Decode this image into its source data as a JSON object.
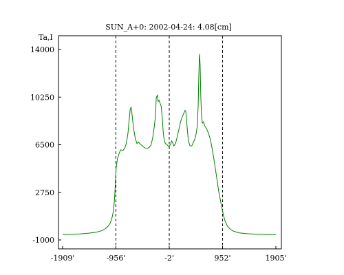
{
  "chart_data": {
    "type": "line",
    "title": "SUN_A+0: 2002-04-24: 4.08[cm]",
    "ylabel": "Ta,I",
    "xlabel": "",
    "xlim": [
      -1909,
      1905
    ],
    "ylim": [
      -1000,
      14000
    ],
    "grid": false,
    "legend": "none",
    "x_ticks": [
      "-1909'",
      "-956'",
      "-2'",
      "952'",
      "1905'"
    ],
    "y_ticks": [
      "14000",
      "10250",
      "6500",
      "2750",
      "-1000"
    ],
    "y_tick_values": [
      14000,
      10250,
      6500,
      2750,
      -1000
    ],
    "x_tick_values": [
      -1909,
      -956,
      -2,
      952,
      1905
    ],
    "vlines": [
      -956,
      -2,
      952
    ],
    "series": [
      {
        "color": "#008000",
        "points": [
          [
            -1909,
            -570
          ],
          [
            -1750,
            -560
          ],
          [
            -1600,
            -530
          ],
          [
            -1450,
            -470
          ],
          [
            -1300,
            -380
          ],
          [
            -1200,
            -260
          ],
          [
            -1150,
            -130
          ],
          [
            -1100,
            60
          ],
          [
            -1060,
            300
          ],
          [
            -1030,
            650
          ],
          [
            -1010,
            1050
          ],
          [
            -990,
            1700
          ],
          [
            -975,
            2600
          ],
          [
            -965,
            3500
          ],
          [
            -950,
            4700
          ],
          [
            -930,
            5350
          ],
          [
            -900,
            5800
          ],
          [
            -870,
            6100
          ],
          [
            -830,
            6050
          ],
          [
            -800,
            6200
          ],
          [
            -770,
            6600
          ],
          [
            -740,
            7400
          ],
          [
            -720,
            8400
          ],
          [
            -700,
            9300
          ],
          [
            -685,
            9450
          ],
          [
            -670,
            9000
          ],
          [
            -640,
            7800
          ],
          [
            -610,
            7000
          ],
          [
            -580,
            6600
          ],
          [
            -550,
            6700
          ],
          [
            -520,
            6550
          ],
          [
            -480,
            6400
          ],
          [
            -440,
            6250
          ],
          [
            -400,
            6200
          ],
          [
            -360,
            6300
          ],
          [
            -330,
            6450
          ],
          [
            -300,
            7000
          ],
          [
            -270,
            7900
          ],
          [
            -250,
            8700
          ],
          [
            -235,
            10200
          ],
          [
            -215,
            10400
          ],
          [
            -200,
            9900
          ],
          [
            -185,
            10000
          ],
          [
            -165,
            9750
          ],
          [
            -145,
            9500
          ],
          [
            -125,
            8500
          ],
          [
            -110,
            7500
          ],
          [
            -90,
            6800
          ],
          [
            -70,
            6600
          ],
          [
            -40,
            6500
          ],
          [
            -10,
            6350
          ],
          [
            20,
            6500
          ],
          [
            40,
            6800
          ],
          [
            60,
            6650
          ],
          [
            80,
            6400
          ],
          [
            110,
            6600
          ],
          [
            140,
            7100
          ],
          [
            170,
            7700
          ],
          [
            200,
            8300
          ],
          [
            230,
            8700
          ],
          [
            260,
            9000
          ],
          [
            280,
            9200
          ],
          [
            295,
            9100
          ],
          [
            315,
            8000
          ],
          [
            340,
            6800
          ],
          [
            370,
            6400
          ],
          [
            400,
            6400
          ],
          [
            430,
            6700
          ],
          [
            460,
            7000
          ],
          [
            480,
            7400
          ],
          [
            500,
            8000
          ],
          [
            515,
            9500
          ],
          [
            525,
            11500
          ],
          [
            535,
            13200
          ],
          [
            542,
            13650
          ],
          [
            552,
            12600
          ],
          [
            562,
            10400
          ],
          [
            575,
            8800
          ],
          [
            590,
            8200
          ],
          [
            610,
            8300
          ],
          [
            630,
            8000
          ],
          [
            660,
            7800
          ],
          [
            700,
            7400
          ],
          [
            740,
            6800
          ],
          [
            780,
            5800
          ],
          [
            820,
            4700
          ],
          [
            850,
            3800
          ],
          [
            880,
            2900
          ],
          [
            910,
            2200
          ],
          [
            940,
            1500
          ],
          [
            970,
            900
          ],
          [
            1000,
            450
          ],
          [
            1040,
            80
          ],
          [
            1090,
            -160
          ],
          [
            1150,
            -320
          ],
          [
            1250,
            -440
          ],
          [
            1400,
            -510
          ],
          [
            1600,
            -550
          ],
          [
            1800,
            -570
          ],
          [
            1905,
            -590
          ]
        ]
      }
    ]
  }
}
